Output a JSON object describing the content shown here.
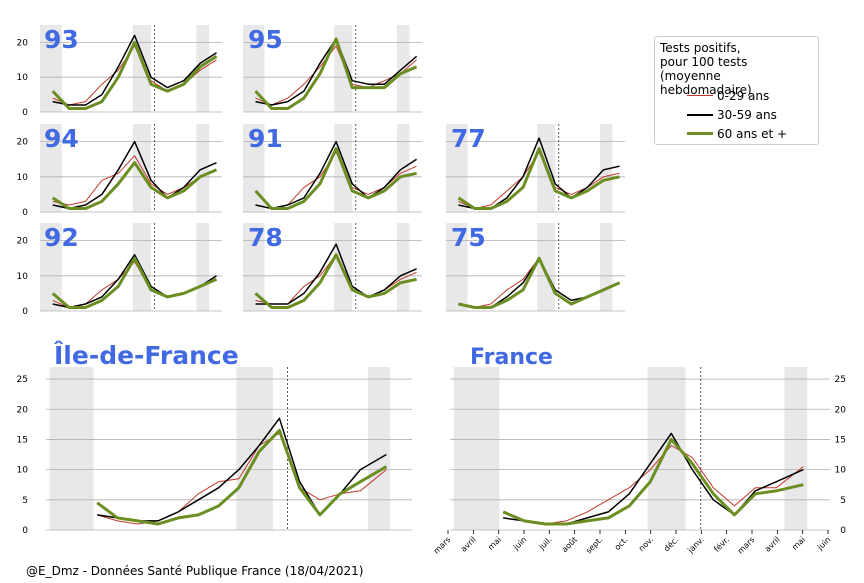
{
  "legend": {
    "title": [
      "Tests positifs,",
      "pour 100 tests",
      "(moyenne hebdomadaire)"
    ],
    "items": [
      {
        "label": "0-29 ans",
        "color": "#c0392b"
      },
      {
        "label": "30-59 ans",
        "color": "#000000"
      },
      {
        "label": "60 ans et +",
        "color": "#6b8e23"
      }
    ]
  },
  "footer": "@E_Dmz - Données Santé Publique France (18/04/2021)",
  "colors": {
    "title_blue": "#4169e1",
    "young": "#c0392b",
    "mid": "#000000",
    "old": "#6b8e23",
    "shade": "#e8e8e8"
  },
  "chart_data": [
    {
      "type": "line",
      "title": "93",
      "ylim": [
        0,
        25
      ],
      "yticks": [
        "0",
        "10",
        "20"
      ],
      "series": [
        {
          "name": "0-29 ans",
          "x": [
            0,
            0.1,
            0.2,
            0.3,
            0.4,
            0.5,
            0.6,
            0.7,
            0.8,
            0.9,
            1
          ],
          "values": [
            4,
            2,
            3,
            8,
            12,
            19,
            9,
            6,
            8,
            12,
            15
          ]
        },
        {
          "name": "30-59 ans",
          "x": [
            0,
            0.1,
            0.2,
            0.3,
            0.4,
            0.5,
            0.6,
            0.7,
            0.8,
            0.9,
            1
          ],
          "values": [
            3,
            2,
            2,
            5,
            13,
            22,
            10,
            7,
            9,
            14,
            17
          ]
        },
        {
          "name": "60 ans et +",
          "x": [
            0,
            0.1,
            0.2,
            0.3,
            0.4,
            0.5,
            0.6,
            0.7,
            0.8,
            0.9,
            1
          ],
          "values": [
            6,
            1,
            1,
            3,
            10,
            20,
            8,
            6,
            8,
            13,
            16
          ]
        }
      ]
    },
    {
      "type": "line",
      "title": "95",
      "ylim": [
        0,
        25
      ],
      "yticks": [
        "0",
        "10",
        "20"
      ],
      "series": [
        {
          "name": "0-29 ans",
          "x": [
            0,
            0.1,
            0.2,
            0.3,
            0.4,
            0.5,
            0.6,
            0.7,
            0.8,
            0.9,
            1
          ],
          "values": [
            4,
            2,
            4,
            8,
            13,
            19,
            8,
            7,
            9,
            11,
            15
          ]
        },
        {
          "name": "30-59 ans",
          "x": [
            0,
            0.1,
            0.2,
            0.3,
            0.4,
            0.5,
            0.6,
            0.7,
            0.8,
            0.9,
            1
          ],
          "values": [
            3,
            2,
            3,
            6,
            14,
            21,
            9,
            8,
            8,
            12,
            16
          ]
        },
        {
          "name": "60 ans et +",
          "x": [
            0,
            0.1,
            0.2,
            0.3,
            0.4,
            0.5,
            0.6,
            0.7,
            0.8,
            0.9,
            1
          ],
          "values": [
            6,
            1,
            1,
            4,
            11,
            21,
            7,
            7,
            7,
            11,
            13
          ]
        }
      ]
    },
    {
      "type": "line",
      "title": "94",
      "ylim": [
        0,
        25
      ],
      "yticks": [
        "0",
        "10",
        "20"
      ],
      "series": [
        {
          "name": "0-29 ans",
          "x": [
            0,
            0.1,
            0.2,
            0.3,
            0.4,
            0.5,
            0.6,
            0.7,
            0.8,
            0.9,
            1
          ],
          "values": [
            3,
            2,
            3,
            9,
            11,
            16,
            8,
            5,
            7,
            10,
            12
          ]
        },
        {
          "name": "30-59 ans",
          "x": [
            0,
            0.1,
            0.2,
            0.3,
            0.4,
            0.5,
            0.6,
            0.7,
            0.8,
            0.9,
            1
          ],
          "values": [
            2,
            1,
            2,
            5,
            12,
            20,
            9,
            4,
            7,
            12,
            14
          ]
        },
        {
          "name": "60 ans et +",
          "x": [
            0,
            0.1,
            0.2,
            0.3,
            0.4,
            0.5,
            0.6,
            0.7,
            0.8,
            0.9,
            1
          ],
          "values": [
            4,
            1,
            1,
            3,
            8,
            14,
            7,
            4,
            6,
            10,
            12
          ]
        }
      ]
    },
    {
      "type": "line",
      "title": "91",
      "ylim": [
        0,
        25
      ],
      "yticks": [
        "0",
        "10",
        "20"
      ],
      "series": [
        {
          "name": "0-29 ans",
          "x": [
            0,
            0.1,
            0.2,
            0.3,
            0.4,
            0.5,
            0.6,
            0.7,
            0.8,
            0.9,
            1
          ],
          "values": [
            2,
            1,
            2,
            7,
            10,
            17,
            7,
            5,
            7,
            11,
            13
          ]
        },
        {
          "name": "30-59 ans",
          "x": [
            0,
            0.1,
            0.2,
            0.3,
            0.4,
            0.5,
            0.6,
            0.7,
            0.8,
            0.9,
            1
          ],
          "values": [
            2,
            1,
            2,
            4,
            11,
            20,
            8,
            4,
            7,
            12,
            15
          ]
        },
        {
          "name": "60 ans et +",
          "x": [
            0,
            0.1,
            0.2,
            0.3,
            0.4,
            0.5,
            0.6,
            0.7,
            0.8,
            0.9,
            1
          ],
          "values": [
            6,
            1,
            1,
            3,
            8,
            18,
            6,
            4,
            6,
            10,
            11
          ]
        }
      ]
    },
    {
      "type": "line",
      "title": "77",
      "ylim": [
        0,
        25
      ],
      "yticks": [
        "0",
        "10",
        "20"
      ],
      "series": [
        {
          "name": "0-29 ans",
          "x": [
            0,
            0.1,
            0.2,
            0.3,
            0.4,
            0.5,
            0.6,
            0.7,
            0.8,
            0.9,
            1
          ],
          "values": [
            3,
            1,
            2,
            6,
            10,
            17,
            7,
            5,
            7,
            10,
            11
          ]
        },
        {
          "name": "30-59 ans",
          "x": [
            0,
            0.1,
            0.2,
            0.3,
            0.4,
            0.5,
            0.6,
            0.7,
            0.8,
            0.9,
            1
          ],
          "values": [
            2,
            1,
            1,
            4,
            10,
            21,
            8,
            4,
            7,
            12,
            13
          ]
        },
        {
          "name": "60 ans et +",
          "x": [
            0,
            0.1,
            0.2,
            0.3,
            0.4,
            0.5,
            0.6,
            0.7,
            0.8,
            0.9,
            1
          ],
          "values": [
            4,
            1,
            1,
            3,
            7,
            18,
            6,
            4,
            6,
            9,
            10
          ]
        }
      ]
    },
    {
      "type": "line",
      "title": "92",
      "ylim": [
        0,
        25
      ],
      "yticks": [
        "0",
        "10",
        "20"
      ],
      "series": [
        {
          "name": "0-29 ans",
          "x": [
            0,
            0.1,
            0.2,
            0.3,
            0.4,
            0.5,
            0.6,
            0.7,
            0.8,
            0.9,
            1
          ],
          "values": [
            3,
            1,
            2,
            6,
            9,
            14,
            6,
            4,
            5,
            7,
            10
          ]
        },
        {
          "name": "30-59 ans",
          "x": [
            0,
            0.1,
            0.2,
            0.3,
            0.4,
            0.5,
            0.6,
            0.7,
            0.8,
            0.9,
            1
          ],
          "values": [
            2,
            1,
            2,
            4,
            9,
            16,
            7,
            4,
            5,
            7,
            10
          ]
        },
        {
          "name": "60 ans et +",
          "x": [
            0,
            0.1,
            0.2,
            0.3,
            0.4,
            0.5,
            0.6,
            0.7,
            0.8,
            0.9,
            1
          ],
          "values": [
            5,
            1,
            1,
            3,
            7,
            15,
            6,
            4,
            5,
            7,
            9
          ]
        }
      ]
    },
    {
      "type": "line",
      "title": "78",
      "ylim": [
        0,
        25
      ],
      "yticks": [
        "0",
        "10",
        "20"
      ],
      "series": [
        {
          "name": "0-29 ans",
          "x": [
            0,
            0.1,
            0.2,
            0.3,
            0.4,
            0.5,
            0.6,
            0.7,
            0.8,
            0.9,
            1
          ],
          "values": [
            3,
            2,
            2,
            7,
            10,
            16,
            7,
            4,
            6,
            9,
            11
          ]
        },
        {
          "name": "30-59 ans",
          "x": [
            0,
            0.1,
            0.2,
            0.3,
            0.4,
            0.5,
            0.6,
            0.7,
            0.8,
            0.9,
            1
          ],
          "values": [
            2,
            2,
            2,
            5,
            11,
            19,
            7,
            4,
            6,
            10,
            12
          ]
        },
        {
          "name": "60 ans et +",
          "x": [
            0,
            0.1,
            0.2,
            0.3,
            0.4,
            0.5,
            0.6,
            0.7,
            0.8,
            0.9,
            1
          ],
          "values": [
            5,
            1,
            1,
            3,
            8,
            16,
            6,
            4,
            5,
            8,
            9
          ]
        }
      ]
    },
    {
      "type": "line",
      "title": "75",
      "ylim": [
        0,
        25
      ],
      "yticks": [
        "0",
        "10",
        "20"
      ],
      "series": [
        {
          "name": "0-29 ans",
          "x": [
            0,
            0.1,
            0.2,
            0.3,
            0.4,
            0.5,
            0.6,
            0.7,
            0.8,
            0.9,
            1
          ],
          "values": [
            2,
            1,
            2,
            6,
            9,
            15,
            6,
            3,
            4,
            6,
            8
          ]
        },
        {
          "name": "30-59 ans",
          "x": [
            0,
            0.1,
            0.2,
            0.3,
            0.4,
            0.5,
            0.6,
            0.7,
            0.8,
            0.9,
            1
          ],
          "values": [
            2,
            1,
            1,
            4,
            8,
            15,
            6,
            3,
            4,
            6,
            8
          ]
        },
        {
          "name": "60 ans et +",
          "x": [
            0,
            0.1,
            0.2,
            0.3,
            0.4,
            0.5,
            0.6,
            0.7,
            0.8,
            0.9,
            1
          ],
          "values": [
            2,
            1,
            1,
            3,
            6,
            15,
            5,
            2,
            4,
            6,
            8
          ]
        }
      ]
    },
    {
      "type": "line",
      "title": "Île-de-France",
      "ylim": [
        0,
        27
      ],
      "yticks": [
        "0",
        "5",
        "10",
        "15",
        "20",
        "25"
      ],
      "series": [
        {
          "name": "0-29 ans",
          "x": [
            0,
            0.07,
            0.14,
            0.21,
            0.28,
            0.35,
            0.42,
            0.49,
            0.56,
            0.63,
            0.7,
            0.77,
            0.84,
            0.91,
            1
          ],
          "values": [
            2.5,
            1.5,
            1,
            1.5,
            3,
            6,
            8,
            8.5,
            14,
            16,
            7,
            5,
            6,
            6.5,
            10
          ]
        },
        {
          "name": "30-59 ans",
          "x": [
            0,
            0.07,
            0.14,
            0.21,
            0.28,
            0.35,
            0.42,
            0.49,
            0.56,
            0.63,
            0.7,
            0.77,
            0.84,
            0.91,
            1
          ],
          "values": [
            2.5,
            2,
            1.5,
            1.5,
            3,
            5,
            7,
            10,
            14,
            18.5,
            8,
            2.5,
            6,
            10,
            12.5
          ]
        },
        {
          "name": "60 ans et +",
          "x": [
            0,
            0.07,
            0.14,
            0.21,
            0.28,
            0.35,
            0.42,
            0.49,
            0.56,
            0.63,
            0.7,
            0.77,
            0.84,
            0.91,
            1
          ],
          "values": [
            4.5,
            2,
            1.5,
            1,
            2,
            2.5,
            4,
            7,
            13,
            16.5,
            7,
            2.5,
            6,
            8,
            10.5
          ]
        }
      ]
    },
    {
      "type": "line",
      "title": "France",
      "ylim": [
        0,
        27
      ],
      "yticks": [
        "0",
        "5",
        "10",
        "15",
        "20",
        "25"
      ],
      "xticks": [
        "mars",
        "avril",
        "mai",
        "juin",
        "juil.",
        "août",
        "sept.",
        "oct.",
        "nov.",
        "déc.",
        "janv.",
        "févr.",
        "mars",
        "avril",
        "mai",
        "juin"
      ],
      "series": [
        {
          "name": "0-29 ans",
          "x": [
            0,
            0.07,
            0.14,
            0.21,
            0.28,
            0.35,
            0.42,
            0.49,
            0.56,
            0.63,
            0.7,
            0.77,
            0.84,
            0.91,
            1
          ],
          "values": [
            2,
            1.5,
            1,
            1.5,
            3,
            5,
            7,
            10,
            14,
            12,
            7,
            4,
            7,
            7,
            10.5
          ]
        },
        {
          "name": "30-59 ans",
          "x": [
            0,
            0.07,
            0.14,
            0.21,
            0.28,
            0.35,
            0.42,
            0.49,
            0.56,
            0.63,
            0.7,
            0.77,
            0.84,
            0.91,
            1
          ],
          "values": [
            2,
            1.5,
            1,
            1,
            2,
            3,
            6,
            11,
            16,
            10,
            5,
            2.5,
            6.5,
            8,
            10
          ]
        },
        {
          "name": "60 ans et +",
          "x": [
            0,
            0.07,
            0.14,
            0.21,
            0.28,
            0.35,
            0.42,
            0.49,
            0.56,
            0.63,
            0.7,
            0.77,
            0.84,
            0.91,
            1
          ],
          "values": [
            3,
            1.5,
            1,
            1,
            1.5,
            2,
            4,
            8,
            15,
            11,
            6,
            2.5,
            6,
            6.5,
            7.5
          ]
        }
      ]
    }
  ]
}
